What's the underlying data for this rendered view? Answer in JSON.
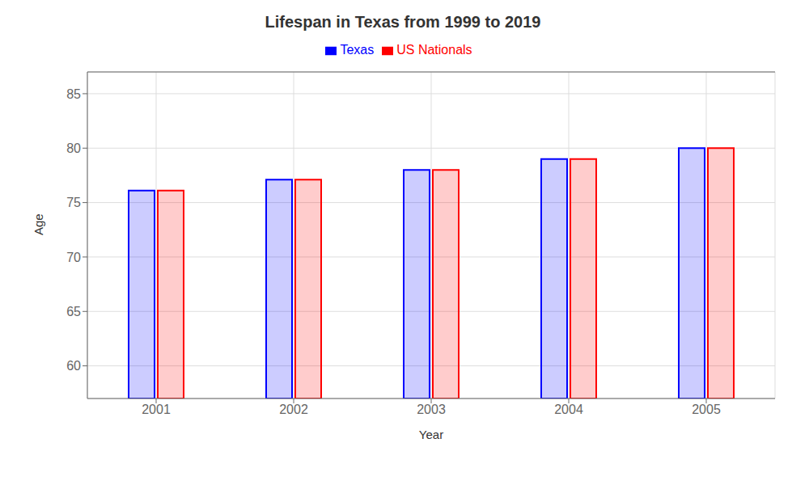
{
  "chart_data": {
    "type": "bar",
    "title": "Lifespan in Texas from 1999 to 2019",
    "x_label": "Year",
    "y_label": "Age",
    "categories": [
      "2001",
      "2002",
      "2003",
      "2004",
      "2005"
    ],
    "series": [
      {
        "name": "Texas",
        "color": "#0000ff",
        "values": [
          76.1,
          77.1,
          78.0,
          79.0,
          80.0
        ]
      },
      {
        "name": "US Nationals",
        "color": "#ff0000",
        "values": [
          76.1,
          77.1,
          78.0,
          79.0,
          80.0
        ]
      }
    ],
    "ylim": [
      57,
      87
    ],
    "yticks": [
      60,
      65,
      70,
      75,
      80,
      85
    ],
    "grid": true,
    "legend": "top"
  }
}
